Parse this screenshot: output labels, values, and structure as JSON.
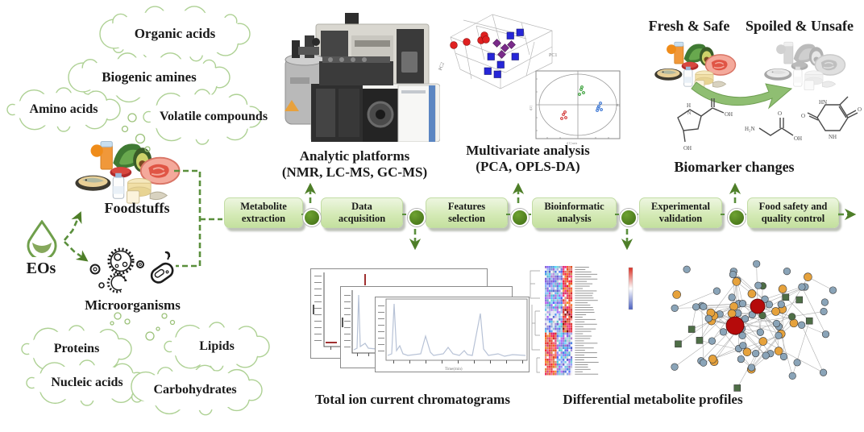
{
  "clouds": {
    "organic_acids": "Organic acids",
    "biogenic_amines": "Biogenic amines",
    "amino_acids": "Amino acids",
    "volatile_compounds": "Volatile compounds",
    "proteins": "Proteins",
    "lipids": "Lipids",
    "nucleic_acids": "Nucleic acids",
    "carbohydrates": "Carbohydrates"
  },
  "left_labels": {
    "foodstuffs": "Foodstuffs",
    "eos": "EOs",
    "microorganisms": "Microorganisms"
  },
  "workflow": {
    "steps": [
      {
        "label": "Metabolite extraction"
      },
      {
        "label": "Data acquisition"
      },
      {
        "label": "Features selection"
      },
      {
        "label": "Bioinformatic analysis"
      },
      {
        "label": "Experimental validation"
      },
      {
        "label": "Food safety and quality control"
      }
    ]
  },
  "captions": {
    "analytic_title": "Analytic platforms",
    "analytic_sub": "(NMR, LC-MS, GC-MS)",
    "multivariate_title": "Multivariate analysis",
    "multivariate_sub": "(PCA, OPLS-DA)",
    "fresh": "Fresh & Safe",
    "spoiled": "Spoiled & Unsafe",
    "biomarker": "Biomarker changes",
    "tic": "Total ion current chromatograms",
    "dmp": "Differential metabolite profiles"
  },
  "colors": {
    "green_line": "#5a8f3c",
    "cloud_stroke": "#aed194",
    "box_fill": "#cde6ad",
    "node_green": "#4f7e1f",
    "heat_red": "#d93025",
    "heat_blue": "#4a5fc0",
    "net_blue": "#8aa4b8",
    "net_orange": "#e6a23c",
    "net_green": "#4e6e46",
    "net_red": "#b50b0b",
    "chrom_trace": "#b7c2d6"
  },
  "heatmap": {
    "rows": 46,
    "cols": 14
  },
  "network": {
    "nodes": 86,
    "hub_count": 2
  }
}
